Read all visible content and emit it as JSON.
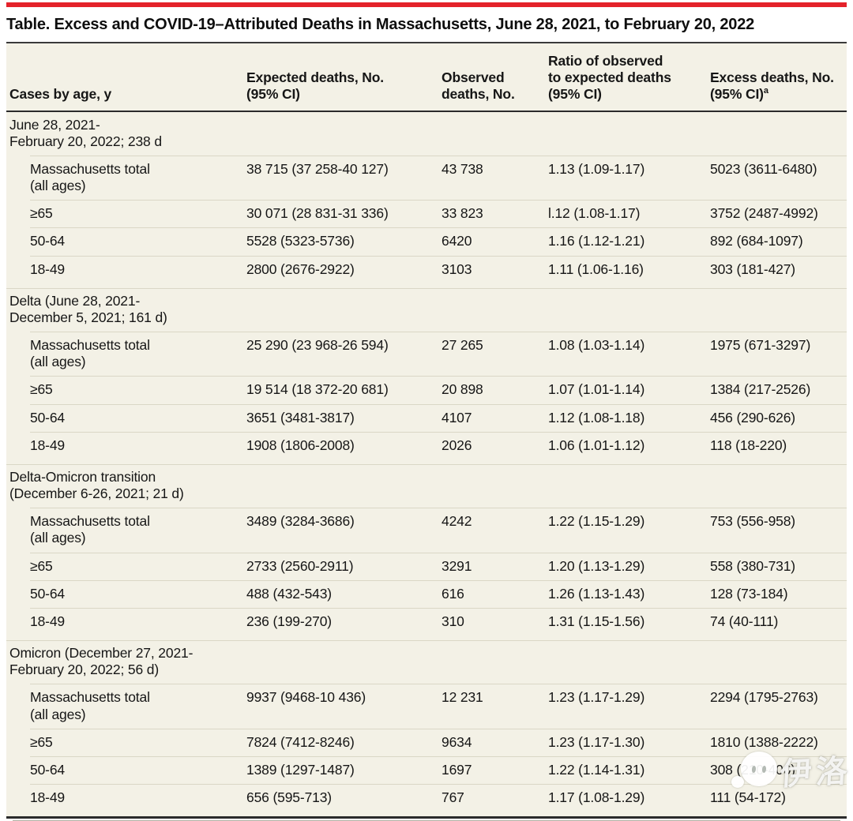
{
  "page": {
    "title": "Table. Excess and COVID-19–Attributed Deaths in Massachusetts, June 28, 2021, to February 20, 2022"
  },
  "colors": {
    "accent_red": "#E4222A",
    "table_background": "#F3F1E6",
    "rule_dark": "#2B2B2B",
    "rule_light": "#DAD7C6",
    "text": "#161616"
  },
  "table": {
    "columns": [
      {
        "label": "Cases by age, y"
      },
      {
        "label": "Expected deaths, No.\n(95% CI)"
      },
      {
        "label": "Observed\ndeaths, No."
      },
      {
        "label": "Ratio of observed\nto expected deaths\n(95% CI)"
      },
      {
        "label": "Excess deaths, No.\n(95% CI)",
        "footnote_marker": "a"
      }
    ],
    "sections": [
      {
        "period": "June 28, 2021-\nFebruary 20, 2022; 238 d",
        "rows": [
          {
            "age": "Massachusetts total\n(all ages)",
            "expected": "38 715 (37 258-40 127)",
            "observed": "43 738",
            "ratio": "1.13 (1.09-1.17)",
            "excess": "5023 (3611-6480)"
          },
          {
            "age": "≥65",
            "expected": "30 071 (28 831-31 336)",
            "observed": "33 823",
            "ratio": "l.12 (1.08-1.17)",
            "excess": "3752 (2487-4992)"
          },
          {
            "age": "50-64",
            "expected": "5528 (5323-5736)",
            "observed": "6420",
            "ratio": "1.16 (1.12-1.21)",
            "excess": "892 (684-1097)"
          },
          {
            "age": "18-49",
            "expected": "2800 (2676-2922)",
            "observed": "3103",
            "ratio": "1.11 (1.06-1.16)",
            "excess": "303 (181-427)"
          }
        ]
      },
      {
        "period": "Delta (June 28, 2021-\nDecember 5, 2021; 161 d)",
        "rows": [
          {
            "age": "Massachusetts total\n(all ages)",
            "expected": "25 290 (23 968-26 594)",
            "observed": "27 265",
            "ratio": "1.08 (1.03-1.14)",
            "excess": "1975 (671-3297)"
          },
          {
            "age": "≥65",
            "expected": "19 514 (18 372-20 681)",
            "observed": "20 898",
            "ratio": "1.07 (1.01-1.14)",
            "excess": "1384 (217-2526)"
          },
          {
            "age": "50-64",
            "expected": "3651 (3481-3817)",
            "observed": "4107",
            "ratio": "1.12 (1.08-1.18)",
            "excess": "456 (290-626)"
          },
          {
            "age": "18-49",
            "expected": "1908 (1806-2008)",
            "observed": "2026",
            "ratio": "1.06 (1.01-1.12)",
            "excess": "118 (18-220)"
          }
        ]
      },
      {
        "period": "Delta-Omicron transition\n(December 6-26, 2021; 21 d)",
        "rows": [
          {
            "age": "Massachusetts total\n(all ages)",
            "expected": "3489 (3284-3686)",
            "observed": "4242",
            "ratio": "1.22 (1.15-1.29)",
            "excess": "753 (556-958)"
          },
          {
            "age": "≥65",
            "expected": "2733 (2560-2911)",
            "observed": "3291",
            "ratio": "1.20 (1.13-1.29)",
            "excess": "558 (380-731)"
          },
          {
            "age": "50-64",
            "expected": "488 (432-543)",
            "observed": "616",
            "ratio": "1.26 (1.13-1.43)",
            "excess": "128 (73-184)"
          },
          {
            "age": "18-49",
            "expected": "236 (199-270)",
            "observed": "310",
            "ratio": "1.31 (1.15-1.56)",
            "excess": "74 (40-111)"
          }
        ]
      },
      {
        "period": "Omicron (December 27, 2021-\nFebruary 20, 2022; 56 d)",
        "rows": [
          {
            "age": "Massachusetts total\n(all ages)",
            "expected": "9937 (9468-10 436)",
            "observed": "12 231",
            "ratio": "1.23 (1.17-1.29)",
            "excess": "2294 (1795-2763)"
          },
          {
            "age": "≥65",
            "expected": "7824 (7412-8246)",
            "observed": "9634",
            "ratio": "1.23 (1.17-1.30)",
            "excess": "1810 (1388-2222)"
          },
          {
            "age": "50-64",
            "expected": "1389 (1297-1487)",
            "observed": "1697",
            "ratio": "1.22 (1.14-1.31)",
            "excess": "308 (210-400)"
          },
          {
            "age": "18-49",
            "expected": "656 (595-713)",
            "observed": "767",
            "ratio": "1.17 (1.08-1.29)",
            "excess": "111 (54-172)"
          }
        ]
      }
    ]
  },
  "watermark": {
    "text": "伊洛",
    "logo": "chat-bubbles-mascot-icon"
  }
}
